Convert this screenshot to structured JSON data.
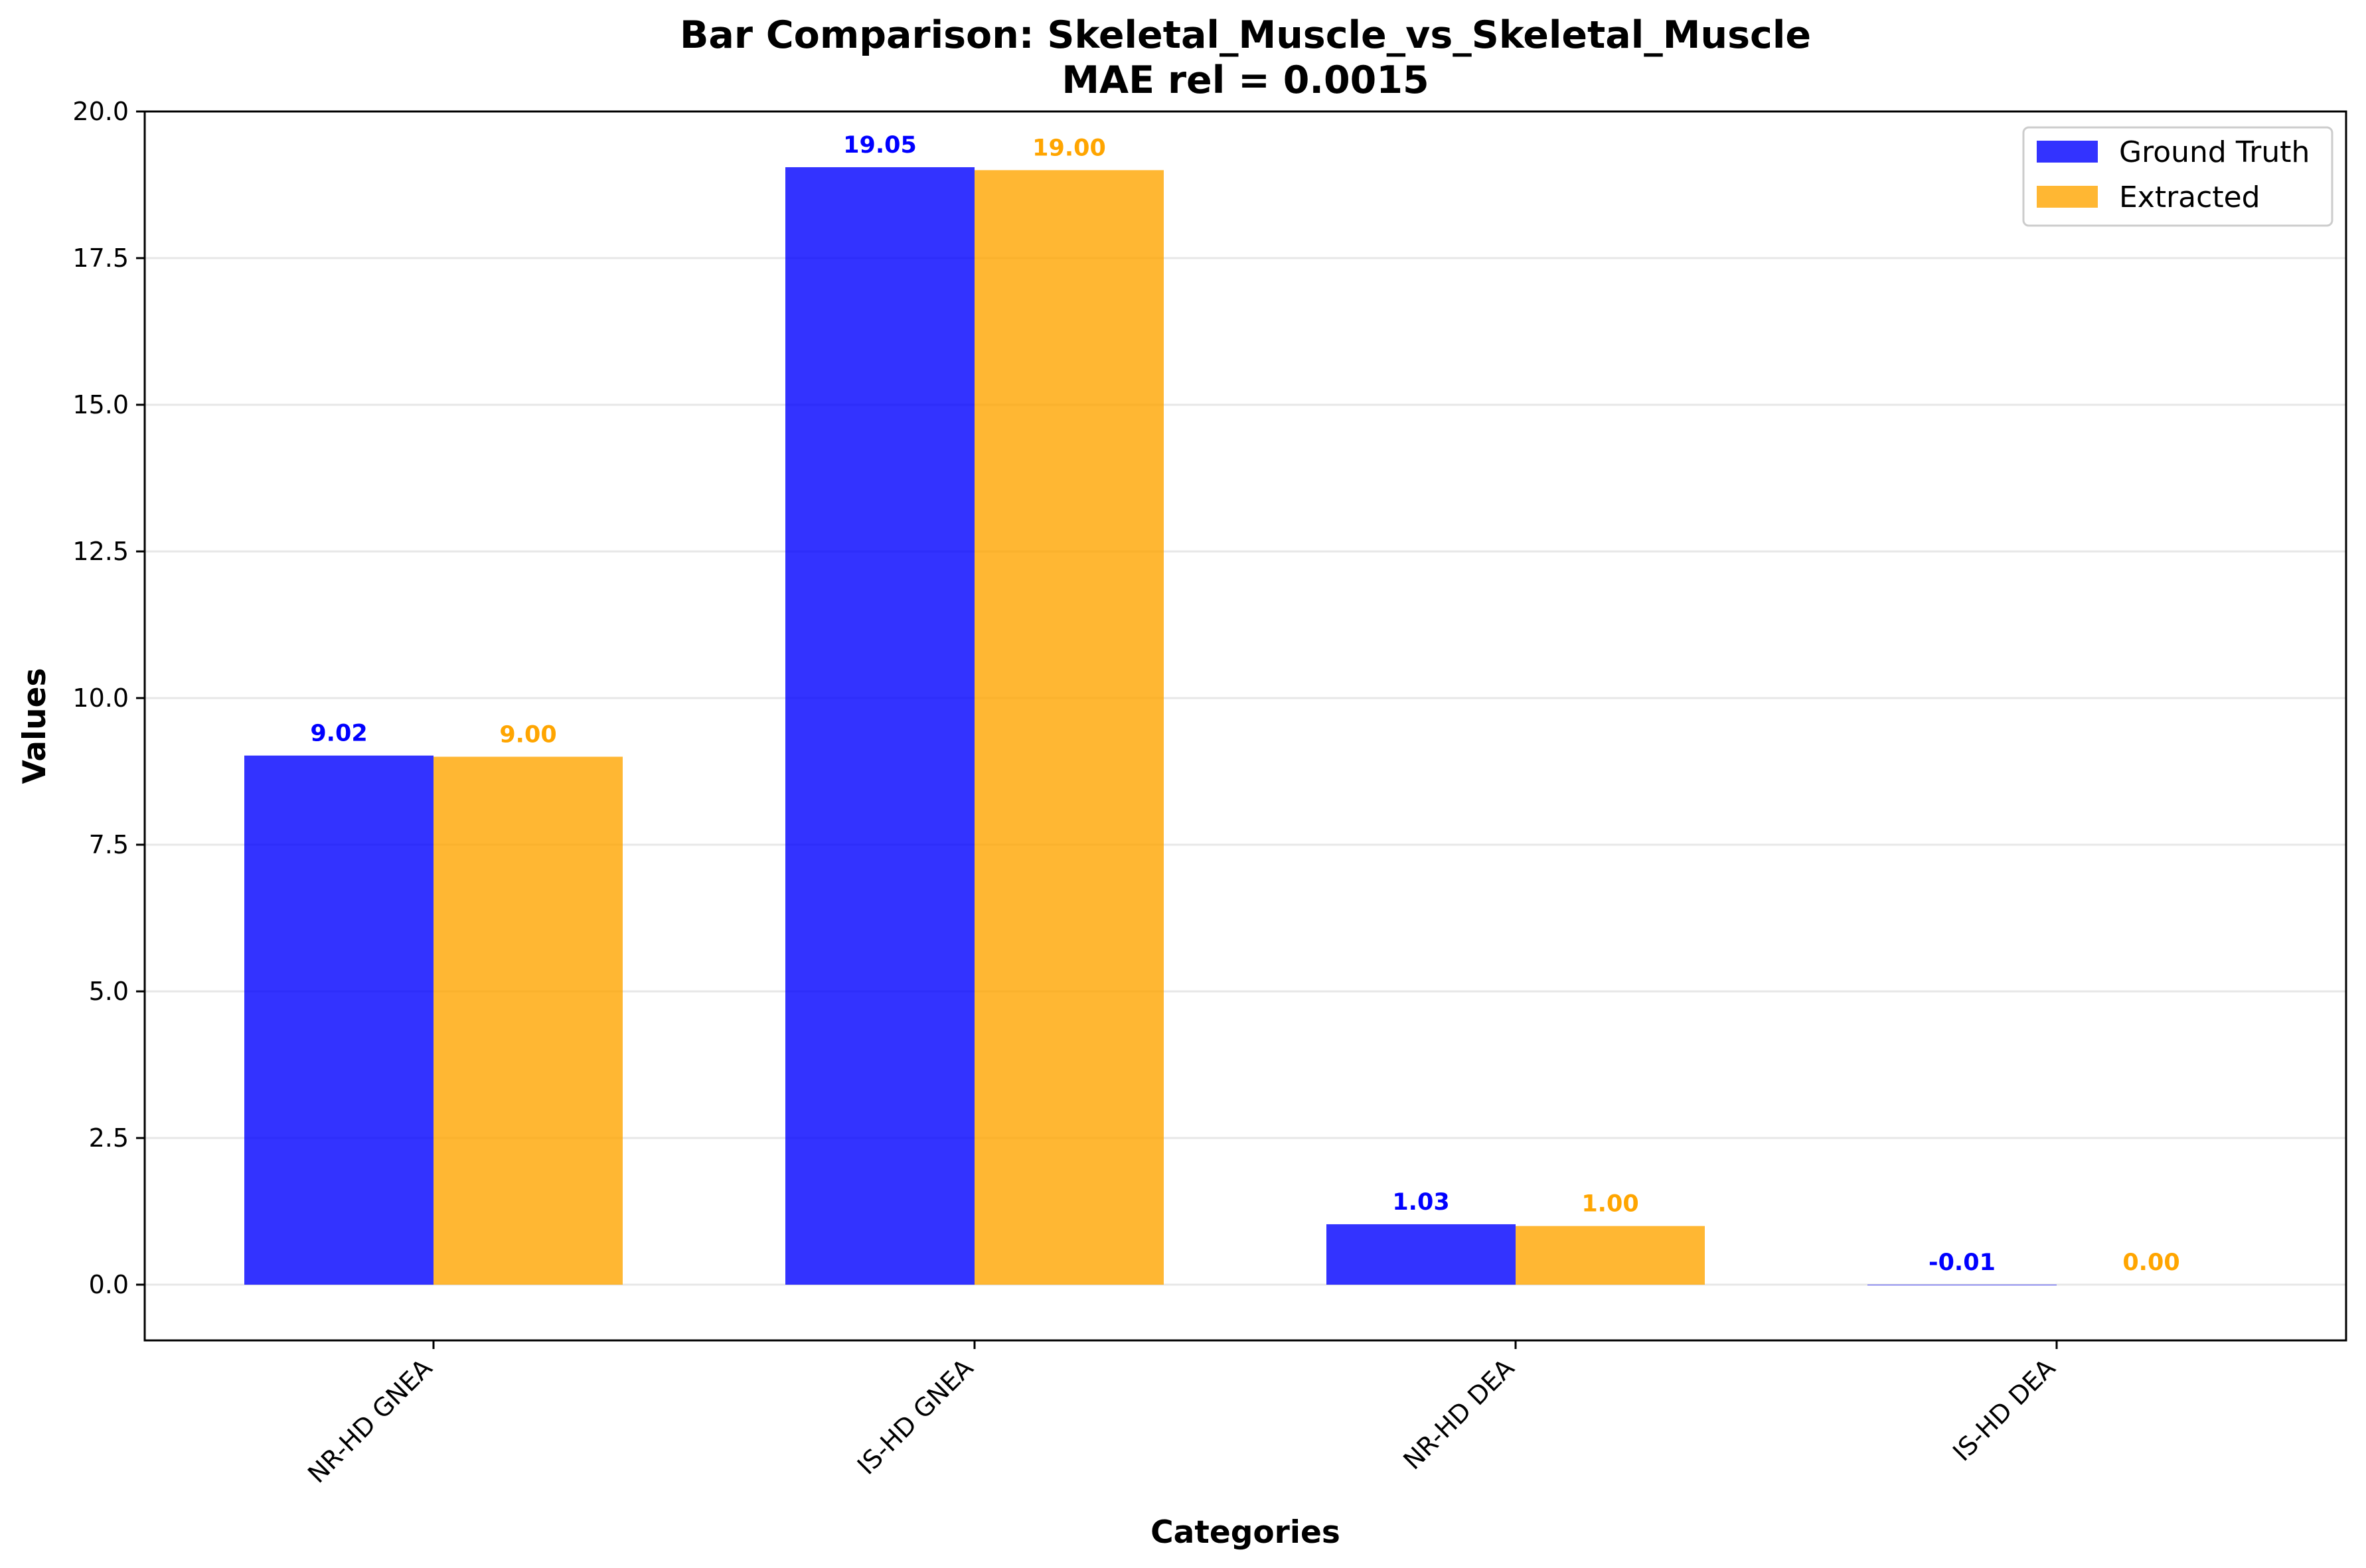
{
  "chart_data": {
    "type": "bar",
    "title": "Bar Comparison: Skeletal_Muscle_vs_Skeletal_Muscle",
    "subtitle": "MAE rel = 0.0015",
    "xlabel": "Categories",
    "ylabel": "Values",
    "categories": [
      "NR-HD GNEA",
      "IS-HD GNEA",
      "NR-HD DEA",
      "IS-HD DEA"
    ],
    "series": [
      {
        "name": "Ground Truth",
        "color": "#0000ff",
        "values": [
          9.02,
          19.05,
          1.03,
          -0.01
        ],
        "labels": [
          "9.02",
          "19.05",
          "1.03",
          "-0.01"
        ]
      },
      {
        "name": "Extracted",
        "color": "#ffa500",
        "values": [
          9.0,
          19.0,
          1.0,
          0.0
        ],
        "labels": [
          "9.00",
          "19.00",
          "1.00",
          "0.00"
        ]
      }
    ],
    "ylim": [
      -0.95,
      20.0
    ],
    "yticks": [
      0.0,
      2.5,
      5.0,
      7.5,
      10.0,
      12.5,
      15.0,
      17.5,
      20.0
    ],
    "ytick_labels": [
      "0.0",
      "2.5",
      "5.0",
      "7.5",
      "10.0",
      "12.5",
      "15.0",
      "17.5",
      "20.0"
    ],
    "grid": true,
    "legend_position": "top-right",
    "label_colors": [
      "#0000ff",
      "#ffa500"
    ]
  }
}
